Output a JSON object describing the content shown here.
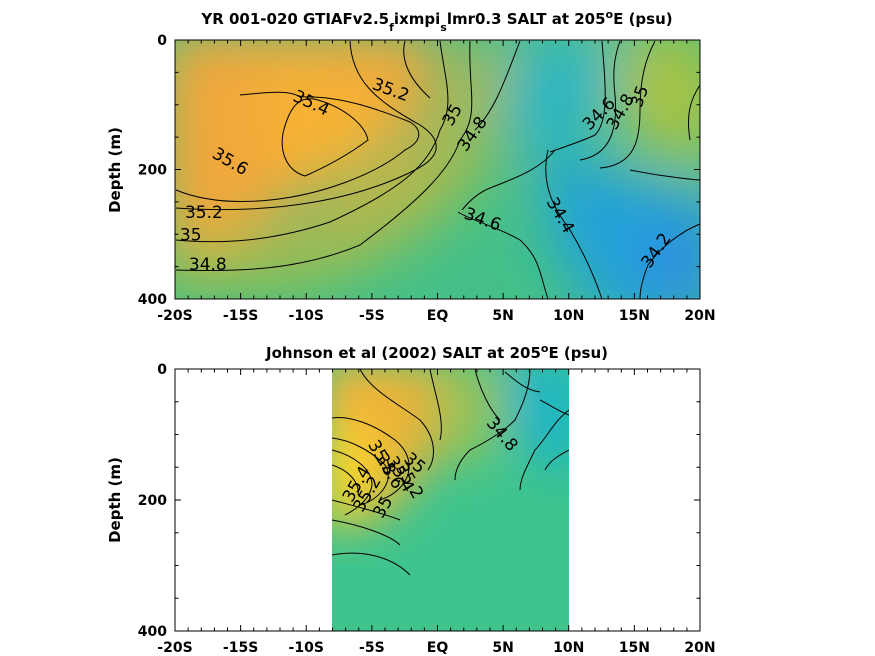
{
  "chart_data": [
    {
      "type": "contour",
      "title_parts": [
        "YR 001-020 GTIAFv2.5",
        "f",
        "ixmpi",
        "s",
        "lmr0.3 SALT at 205",
        "o",
        "E (psu)"
      ],
      "xlabel": "",
      "ylabel": "Depth (m)",
      "x_tick_labels": [
        "-20S",
        "-15S",
        "-10S",
        "-5S",
        "EQ",
        "5N",
        "10N",
        "15N",
        "20N"
      ],
      "x_ticks": [
        -20,
        -15,
        -10,
        -5,
        0,
        5,
        10,
        15,
        20
      ],
      "xlim": [
        -20,
        20
      ],
      "y_ticks": [
        0,
        200,
        400
      ],
      "y_tick_labels": [
        "0",
        "200",
        "400"
      ],
      "ylim": [
        0,
        400
      ],
      "y_reversed": true,
      "data_xlim": [
        -20,
        20
      ],
      "contour_labels": [
        {
          "text": "35.4",
          "lon": -9.8,
          "depth": 105
        },
        {
          "text": "35.2",
          "lon": -3.7,
          "depth": 85
        },
        {
          "text": "35.6",
          "lon": -16.0,
          "depth": 195
        },
        {
          "text": "35",
          "lon": 1.5,
          "depth": 120
        },
        {
          "text": "34.8",
          "lon": 3.0,
          "depth": 150
        },
        {
          "text": "35.2",
          "lon": -17.8,
          "depth": 275
        },
        {
          "text": "35",
          "lon": -18.8,
          "depth": 310
        },
        {
          "text": "34.8",
          "lon": -17.5,
          "depth": 355
        },
        {
          "text": "34.6",
          "lon": 3.3,
          "depth": 285
        },
        {
          "text": "34.4",
          "lon": 9.0,
          "depth": 275
        },
        {
          "text": "34.2",
          "lon": 17.0,
          "depth": 330
        },
        {
          "text": "34.6",
          "lon": 12.6,
          "depth": 120
        },
        {
          "text": "34.8",
          "lon": 14.3,
          "depth": 115
        },
        {
          "text": "35",
          "lon": 15.8,
          "depth": 90
        }
      ]
    },
    {
      "type": "contour",
      "title_parts": [
        "Johnson et al (2002) SALT at 205",
        "o",
        "E (psu)"
      ],
      "xlabel": "",
      "ylabel": "Depth (m)",
      "x_tick_labels": [
        "-20S",
        "-15S",
        "-10S",
        "-5S",
        "EQ",
        "5N",
        "10N",
        "15N",
        "20N"
      ],
      "x_ticks": [
        -20,
        -15,
        -10,
        -5,
        0,
        5,
        10,
        15,
        20
      ],
      "xlim": [
        -20,
        20
      ],
      "y_ticks": [
        0,
        200,
        400
      ],
      "y_tick_labels": [
        "0",
        "200",
        "400"
      ],
      "ylim": [
        0,
        400
      ],
      "y_reversed": true,
      "data_xlim": [
        -8,
        10
      ],
      "contour_labels": [
        {
          "text": "34.8",
          "lon": 4.6,
          "depth": 105
        },
        {
          "text": "35",
          "lon": -2.0,
          "depth": 150
        },
        {
          "text": "35.2",
          "lon": -2.5,
          "depth": 175
        },
        {
          "text": "35.4",
          "lon": -3.2,
          "depth": 165
        },
        {
          "text": "35.6",
          "lon": -4.0,
          "depth": 160
        },
        {
          "text": "35.8",
          "lon": -4.6,
          "depth": 140
        },
        {
          "text": "35",
          "lon": -3.8,
          "depth": 215
        },
        {
          "text": "35.2",
          "lon": -5.0,
          "depth": 195
        },
        {
          "text": "35.4",
          "lon": -5.8,
          "depth": 180
        }
      ]
    }
  ],
  "colors": {
    "high_salinity": "#f2ae37",
    "mid_salinity": "#8cc84a",
    "low_salinity": "#1aa6dc",
    "contour": "#000000"
  }
}
